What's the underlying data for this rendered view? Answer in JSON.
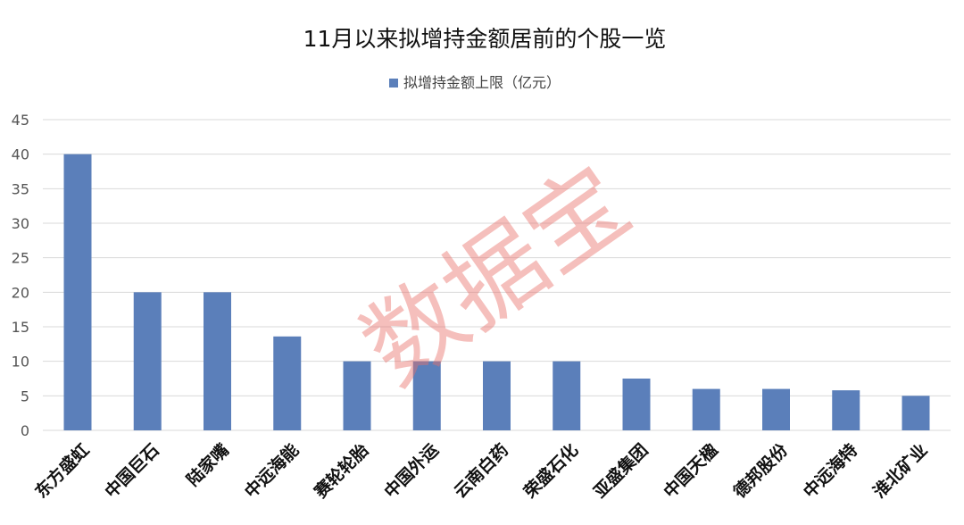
{
  "chart_data": {
    "type": "bar",
    "title": "11月以来拟增持金额居前的个股一览",
    "legend": {
      "position": "top",
      "label": "拟增持金额上限（亿元）"
    },
    "categories": [
      "东方盛虹",
      "中国巨石",
      "陆家嘴",
      "中远海能",
      "赛轮轮胎",
      "中国外运",
      "云南白药",
      "荣盛石化",
      "亚盛集团",
      "中国天楹",
      "德邦股份",
      "中远海特",
      "淮北矿业"
    ],
    "series": [
      {
        "name": "拟增持金额上限（亿元）",
        "values": [
          40,
          20,
          20,
          13.6,
          10,
          10,
          10,
          10,
          7.5,
          6,
          6,
          5.8,
          5
        ]
      }
    ],
    "yticks": [
      "0",
      "5",
      "10",
      "15",
      "20",
      "25",
      "30",
      "35",
      "40",
      "45"
    ],
    "ylim": [
      0,
      45
    ],
    "grid": true,
    "xlabel": "",
    "ylabel": ""
  },
  "colors": {
    "bar": "#5b7fba",
    "grid": "#d9d9d9",
    "watermark": "#e8706b"
  },
  "watermark": {
    "text": "数据宝"
  }
}
